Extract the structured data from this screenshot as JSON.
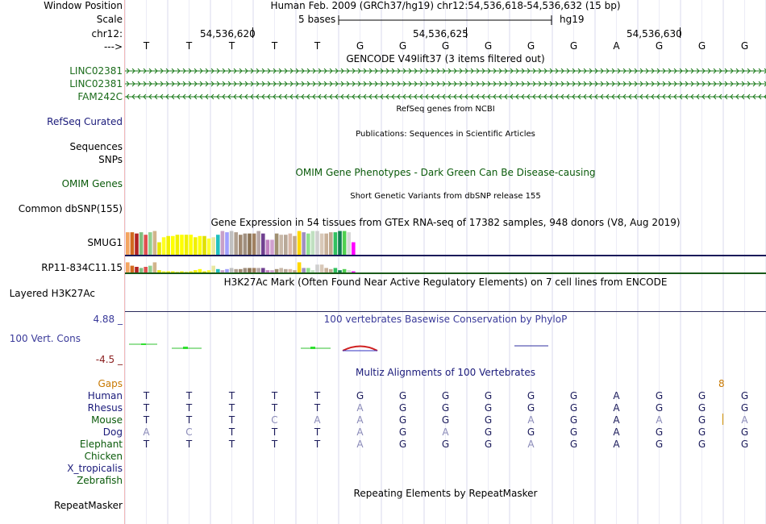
{
  "header": {
    "window_position_label": "Window Position",
    "window_position_text": "Human Feb. 2009 (GRCh37/hg19)   chr12:54,536,618-54,536,632 (15 bp)",
    "scale_label": "Scale",
    "scale_text": "5 bases",
    "scale_assembly": "hg19",
    "chrom_label": "chr12:",
    "coords": [
      "54,536,620",
      "54,536,625",
      "54,536,630"
    ],
    "arrow_label": "--->"
  },
  "bases": [
    "T",
    "T",
    "T",
    "T",
    "T",
    "G",
    "G",
    "G",
    "G",
    "G",
    "G",
    "A",
    "G",
    "G",
    "G"
  ],
  "gencode": {
    "title": "GENCODE V49lift37 (3 items filtered out)",
    "tracks": [
      {
        "label": "LINC02381",
        "direction": ">"
      },
      {
        "label": "LINC02381",
        "direction": ">"
      },
      {
        "label": "FAM242C",
        "direction": "<"
      }
    ]
  },
  "refseq": {
    "title": "RefSeq genes from NCBI",
    "label": "RefSeq Curated"
  },
  "publications": {
    "title": "Publications: Sequences in Scientific Articles",
    "label1": "Sequences",
    "label2": "SNPs"
  },
  "omim": {
    "title": "OMIM Gene Phenotypes - Dark Green Can Be Disease-causing",
    "label": "OMIM Genes"
  },
  "dbsnp": {
    "title": "Short Genetic Variants from dbSNP release 155",
    "label": "Common dbSNP(155)"
  },
  "gtex": {
    "title": "Gene Expression in 54 tissues from GTEx RNA-seq of 17382 samples, 948 donors (V8, Aug 2019)",
    "genes": [
      "SMUG1",
      "RP11-834C11.15"
    ],
    "smug1_values": [
      0.9,
      0.9,
      0.85,
      0.9,
      0.8,
      0.9,
      0.95,
      0.5,
      0.7,
      0.75,
      0.75,
      0.8,
      0.8,
      0.8,
      0.8,
      0.7,
      0.75,
      0.75,
      0.65,
      0.7,
      0.8,
      0.95,
      0.9,
      0.95,
      0.9,
      0.8,
      0.85,
      0.85,
      0.85,
      0.95,
      0.85,
      0.6,
      0.6,
      0.85,
      0.8,
      0.8,
      0.85,
      0.75,
      0.95,
      0.9,
      0.85,
      0.95,
      0.95,
      0.85,
      0.85,
      0.9,
      0.9,
      0.95,
      0.95,
      0.9,
      0.5
    ],
    "rp11_values": [
      0.9,
      0.6,
      0.5,
      0.4,
      0.5,
      0.6,
      0.9,
      0.2,
      0.1,
      0.1,
      0.1,
      0.05,
      0.1,
      0.05,
      0.1,
      0.2,
      0.3,
      0.1,
      0.2,
      0.6,
      0.3,
      0.2,
      0.3,
      0.4,
      0.3,
      0.3,
      0.4,
      0.4,
      0.4,
      0.4,
      0.4,
      0.2,
      0.2,
      0.3,
      0.4,
      0.3,
      0.3,
      0.2,
      0.9,
      0.4,
      0.4,
      0.2,
      0.7,
      0.7,
      0.4,
      0.3,
      0.4,
      0.2,
      0.3,
      0.2,
      0.1
    ],
    "colors": [
      "#f4a460",
      "#d2691e",
      "#b22222",
      "#7fbf7f",
      "#e05050",
      "#90d090",
      "#d2b48c",
      "#e8e800",
      "#ffff20",
      "#f0f000",
      "#ffff00",
      "#f0f000",
      "#ffff00",
      "#f0f000",
      "#ffff00",
      "#f0f000",
      "#ffff00",
      "#e0e000",
      "#ffff30",
      "#e8e8a0",
      "#20c0c0",
      "#c8a0c8",
      "#a0a0ff",
      "#c0c0c0",
      "#b0a090",
      "#a08870",
      "#a09080",
      "#8b7355",
      "#a08060",
      "#b8a8a8",
      "#704090",
      "#c080c0",
      "#d0a0d0",
      "#a09070",
      "#c8b8a8",
      "#b8a898",
      "#d8b8a8",
      "#c0a890",
      "#ffd700",
      "#a090c0",
      "#90e090",
      "#c0e0c0",
      "#d0d0d0",
      "#d8c8b8",
      "#c8b098",
      "#c0a890",
      "#30c060",
      "#108050",
      "#50d050",
      "#d8d8d8",
      "#ff00ff"
    ]
  },
  "h3k27ac": {
    "title": "H3K27Ac Mark (Often Found Near Active Regulatory Elements) on 7 cell lines from ENCODE",
    "label": "Layered H3K27Ac"
  },
  "phylop": {
    "title": "100 vertebrates Basewise Conservation by PhyloP",
    "label": "100 Vert. Cons",
    "max": "4.88 _",
    "min": "-4.5 _"
  },
  "multiz": {
    "title": "Multiz Alignments of 100 Vertebrates",
    "gaps_label": "Gaps",
    "gap_number": "8",
    "species": [
      {
        "name": "Human",
        "bases": [
          "T",
          "T",
          "T",
          "T",
          "T",
          "G",
          "G",
          "G",
          "G",
          "G",
          "G",
          "A",
          "G",
          "G",
          "G"
        ],
        "faint": [
          false,
          false,
          false,
          false,
          false,
          false,
          false,
          false,
          false,
          false,
          false,
          false,
          false,
          false,
          false
        ]
      },
      {
        "name": "Rhesus",
        "bases": [
          "T",
          "T",
          "T",
          "T",
          "T",
          "A",
          "G",
          "G",
          "G",
          "G",
          "G",
          "A",
          "G",
          "G",
          "G"
        ],
        "faint": [
          false,
          false,
          false,
          false,
          false,
          true,
          false,
          false,
          false,
          false,
          false,
          false,
          false,
          false,
          false
        ]
      },
      {
        "name": "Mouse",
        "bases": [
          "T",
          "T",
          "T",
          "C",
          "A",
          "A",
          "G",
          "G",
          "G",
          "A",
          "G",
          "A",
          "A",
          "G",
          "A"
        ],
        "faint": [
          false,
          false,
          false,
          true,
          true,
          true,
          false,
          false,
          false,
          true,
          false,
          false,
          true,
          false,
          true
        ]
      },
      {
        "name": "Dog",
        "bases": [
          "A",
          "C",
          "T",
          "T",
          "T",
          "A",
          "G",
          "A",
          "G",
          "G",
          "G",
          "A",
          "G",
          "G",
          "G"
        ],
        "faint": [
          true,
          true,
          false,
          false,
          false,
          true,
          false,
          true,
          false,
          false,
          false,
          false,
          false,
          false,
          false
        ]
      },
      {
        "name": "Elephant",
        "bases": [
          "T",
          "T",
          "T",
          "T",
          "T",
          "A",
          "G",
          "G",
          "G",
          "A",
          "G",
          "A",
          "G",
          "G",
          "G"
        ],
        "faint": [
          false,
          false,
          false,
          false,
          false,
          true,
          false,
          false,
          false,
          true,
          false,
          false,
          false,
          false,
          false
        ]
      },
      {
        "name": "Chicken",
        "bases": [],
        "faint": []
      },
      {
        "name": "X_tropicalis",
        "bases": [],
        "faint": []
      },
      {
        "name": "Zebrafish",
        "bases": [],
        "faint": []
      }
    ]
  },
  "repeatmasker": {
    "title": "Repeating Elements by RepeatMasker",
    "label": "RepeatMasker"
  }
}
